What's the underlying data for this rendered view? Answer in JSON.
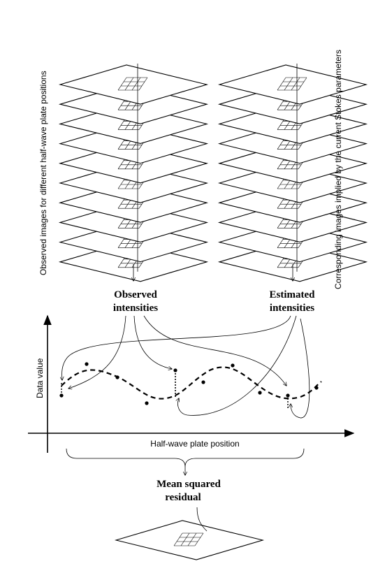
{
  "labels": {
    "left_stack_caption": "Observed images for different half-wave plate positions",
    "right_stack_caption": "Corresponding images implied by the current Stokes parameters",
    "observed_line1": "Observed",
    "observed_line2": "intensities",
    "estimated_line1": "Estimated",
    "estimated_line2": "intensities",
    "y_axis": "Data value",
    "x_axis": "Half-wave plate position",
    "msr_line1": "Mean squared",
    "msr_line2": "residual"
  },
  "stacks": {
    "image_count": 10
  }
}
